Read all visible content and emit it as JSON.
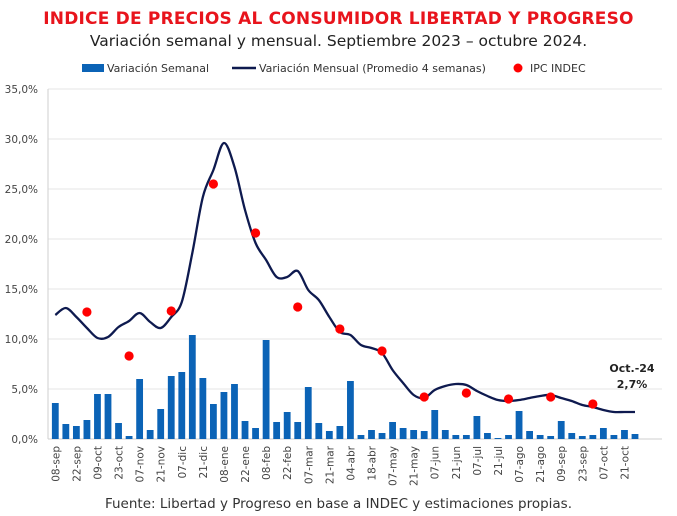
{
  "chart_data": {
    "type": "bar+line+scatter",
    "title": "INDICE DE PRECIOS AL CONSUMIDOR LIBERTAD Y PROGRESO",
    "subtitle": "Variación semanal y mensual. Septiembre 2023 – octubre 2024.",
    "source": "Fuente: Libertad y Progreso en base a INDEC y estimaciones propias.",
    "ylim": [
      0,
      35
    ],
    "y_ticks": [
      "0,0%",
      "5,0%",
      "10,0%",
      "15,0%",
      "20,0%",
      "25,0%",
      "30,0%",
      "35,0%"
    ],
    "grid": true,
    "legend_position": "top",
    "x_tick_labels": [
      "08-sep",
      "22-sep",
      "09-oct",
      "23-oct",
      "07-nov",
      "21-nov",
      "07-dic",
      "21-dic",
      "08-ene",
      "22-ene",
      "08-feb",
      "22-feb",
      "07-mar",
      "21-mar",
      "04-abr",
      "18-abr",
      "07-may",
      "21-may",
      "07-jun",
      "21-jun",
      "07-jul",
      "21-jul",
      "07-ago",
      "21-ago",
      "09-sep",
      "23-sep",
      "07-oct",
      "21-oct"
    ],
    "series": [
      {
        "name": "Variación Semanal",
        "type": "bar",
        "color": "#0b63b6",
        "values": [
          3.6,
          1.5,
          1.3,
          1.9,
          4.5,
          4.5,
          1.6,
          0.3,
          6.0,
          0.9,
          3.0,
          6.3,
          6.7,
          10.4,
          6.1,
          3.5,
          4.7,
          5.5,
          1.8,
          1.1,
          9.9,
          1.7,
          2.7,
          1.7,
          5.2,
          1.6,
          0.8,
          1.3,
          5.8,
          0.4,
          0.9,
          0.6,
          1.7,
          1.1,
          0.9,
          0.8,
          2.9,
          0.9,
          0.4,
          0.4,
          2.3,
          0.6,
          0.1,
          0.4,
          2.8,
          0.8,
          0.4,
          0.3,
          1.8,
          0.6,
          0.3,
          0.4,
          1.1,
          0.4,
          0.9,
          0.5
        ]
      },
      {
        "name": "Variación Mensual (Promedio 4 semanas)",
        "type": "line",
        "color": "#0e1a4f",
        "values": [
          12.4,
          13.1,
          12.2,
          11.1,
          10.1,
          10.2,
          11.2,
          11.8,
          12.6,
          11.7,
          11.1,
          12.2,
          13.7,
          18.6,
          24.2,
          26.9,
          29.6,
          27.2,
          22.9,
          19.6,
          17.9,
          16.2,
          16.2,
          16.8,
          14.9,
          13.9,
          12.2,
          10.7,
          10.4,
          9.4,
          9.1,
          8.6,
          6.9,
          5.6,
          4.4,
          4.1,
          4.9,
          5.3,
          5.5,
          5.4,
          4.8,
          4.3,
          3.9,
          3.8,
          3.9,
          4.1,
          4.3,
          4.4,
          4.1,
          3.8,
          3.4,
          3.2,
          2.9,
          2.7,
          2.7,
          2.7
        ]
      },
      {
        "name": "IPC INDEC",
        "type": "scatter",
        "color": "#ff0000",
        "months": [
          "sep-23",
          "oct-23",
          "nov-23",
          "dic-23",
          "ene-24",
          "feb-24",
          "mar-24",
          "abr-24",
          "may-24",
          "jun-24",
          "jul-24",
          "ago-24",
          "sep-24"
        ],
        "values": [
          12.7,
          8.3,
          12.8,
          25.5,
          20.6,
          13.2,
          11.0,
          8.8,
          4.2,
          4.6,
          4.0,
          4.2,
          3.5
        ]
      }
    ],
    "annotation": {
      "label": "Oct.-24",
      "value": "2,7%"
    }
  }
}
